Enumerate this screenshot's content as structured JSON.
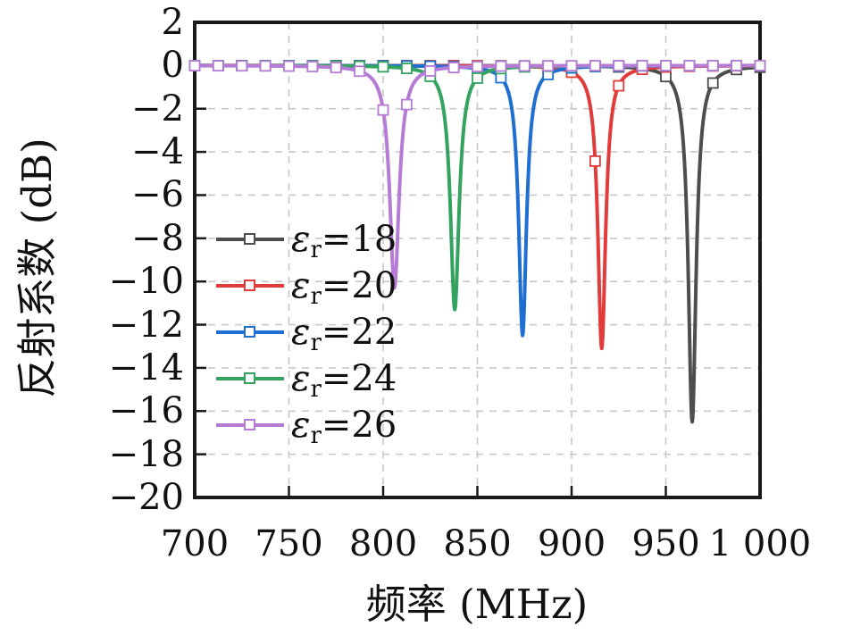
{
  "figure": {
    "background": "#ffffff",
    "axis_color": "#1a1a1a",
    "grid_color": "#c8c8c8"
  },
  "chart_data": {
    "type": "line",
    "title": "",
    "xlabel": "频率 (MHz)",
    "ylabel": "反射系数 (dB)",
    "xlim": [
      700,
      1000
    ],
    "ylim": [
      -20,
      2
    ],
    "x_ticks": [
      700,
      750,
      800,
      850,
      900,
      950,
      1000
    ],
    "x_tick_labels": [
      "700",
      "750",
      "800",
      "850",
      "900",
      "950",
      "1 000"
    ],
    "y_ticks": [
      2,
      0,
      -2,
      -4,
      -6,
      -8,
      -10,
      -12,
      -14,
      -16,
      -18,
      -20
    ],
    "y_tick_labels": [
      "2",
      "0",
      "−2",
      "−4",
      "−6",
      "−8",
      "−10",
      "−12",
      "−14",
      "−16",
      "−18",
      "−20"
    ],
    "grid": true,
    "grid_style": "dashed",
    "legend_position": "center-left-inside",
    "curve_model": "lorentzian_db",
    "marker": "open-square",
    "marker_step_mhz": 12.5,
    "marker_skip_depth_db": 6,
    "baseline_db": 0,
    "series": [
      {
        "name": "εr=18",
        "symbol": "ε",
        "subscript": "r",
        "rest": "=18",
        "color": "#4d4d4d",
        "dip": {
          "frequency_mhz": 964,
          "min_db": -16.5,
          "halfwidth_mhz": 2.5
        }
      },
      {
        "name": "εr=20",
        "symbol": "ε",
        "subscript": "r",
        "rest": "=20",
        "color": "#e23b3b",
        "dip": {
          "frequency_mhz": 916,
          "min_db": -13.1,
          "halfwidth_mhz": 2.5
        }
      },
      {
        "name": "εr=22",
        "symbol": "ε",
        "subscript": "r",
        "rest": "=22",
        "color": "#1f6fd2",
        "dip": {
          "frequency_mhz": 874,
          "min_db": -12.5,
          "halfwidth_mhz": 2.5
        }
      },
      {
        "name": "εr=24",
        "symbol": "ε",
        "subscript": "r",
        "rest": "=24",
        "color": "#33a35f",
        "dip": {
          "frequency_mhz": 838,
          "min_db": -11.3,
          "halfwidth_mhz": 2.8
        }
      },
      {
        "name": "εr=26",
        "symbol": "ε",
        "subscript": "r",
        "rest": "=26",
        "color": "#b57bd5",
        "dip": {
          "frequency_mhz": 806,
          "min_db": -10.3,
          "halfwidth_mhz": 3.0
        }
      }
    ]
  }
}
